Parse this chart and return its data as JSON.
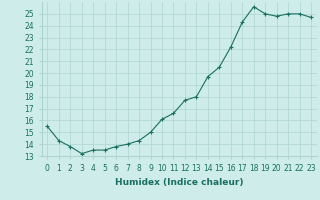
{
  "x": [
    0,
    1,
    2,
    3,
    4,
    5,
    6,
    7,
    8,
    9,
    10,
    11,
    12,
    13,
    14,
    15,
    16,
    17,
    18,
    19,
    20,
    21,
    22,
    23
  ],
  "y": [
    15.5,
    14.3,
    13.8,
    13.2,
    13.5,
    13.5,
    13.8,
    14.0,
    14.3,
    15.0,
    16.1,
    16.6,
    17.7,
    18.0,
    19.7,
    20.5,
    22.2,
    24.3,
    25.6,
    25.0,
    24.8,
    25.0,
    25.0,
    24.7
  ],
  "xlabel": "Humidex (Indice chaleur)",
  "xlim": [
    -0.5,
    23.5
  ],
  "ylim": [
    13,
    26
  ],
  "yticks": [
    13,
    14,
    15,
    16,
    17,
    18,
    19,
    20,
    21,
    22,
    23,
    24,
    25
  ],
  "xticks": [
    0,
    1,
    2,
    3,
    4,
    5,
    6,
    7,
    8,
    9,
    10,
    11,
    12,
    13,
    14,
    15,
    16,
    17,
    18,
    19,
    20,
    21,
    22,
    23
  ],
  "line_color": "#1a7060",
  "marker": "+",
  "bg_color": "#cdecea",
  "grid_color": "#aed4d0",
  "label_fontsize": 6.5,
  "tick_fontsize": 5.5
}
